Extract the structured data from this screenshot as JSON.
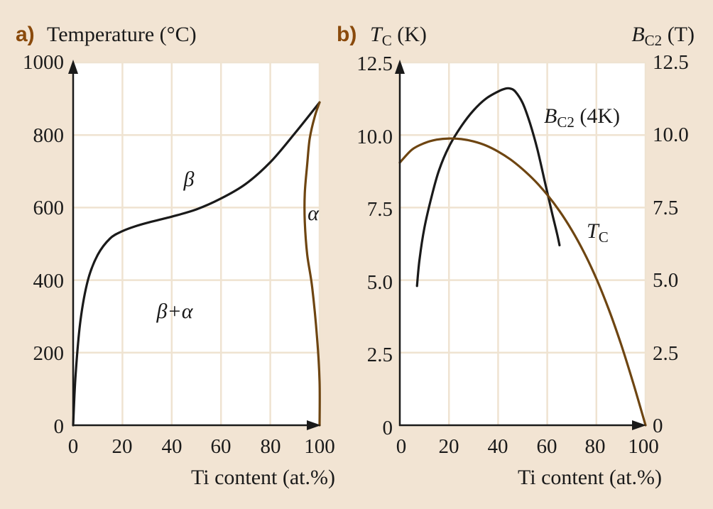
{
  "colors": {
    "background": "#f2e4d3",
    "plot_area": "#ffffff",
    "grid": "#efe3d1",
    "black_curve": "#1a1a1a",
    "brown_curve": "#6e4511",
    "panel_label": "#8a4a0c"
  },
  "chart_data": [
    {
      "type": "line",
      "panel_label": "a)",
      "title": "",
      "xlabel": "Ti content (at.%)",
      "ylabel": "Temperature (°C)",
      "xlim": [
        0,
        100
      ],
      "ylim": [
        0,
        1000
      ],
      "x_ticks": [
        "0",
        "20",
        "40",
        "60",
        "80",
        "100"
      ],
      "y_ticks": [
        "0",
        "200",
        "400",
        "600",
        "800",
        "1000"
      ],
      "grid": true,
      "series": [
        {
          "name": "",
          "color": "#1a1a1a",
          "x": [
            0,
            1,
            3,
            6,
            10,
            15,
            20,
            25,
            30,
            40,
            50,
            60,
            70,
            80,
            90,
            100
          ],
          "y": [
            0,
            140,
            290,
            400,
            470,
            515,
            535,
            548,
            558,
            575,
            595,
            625,
            665,
            725,
            805,
            890
          ]
        },
        {
          "name": "",
          "color": "#6e4511",
          "x": [
            100,
            100,
            99,
            97,
            95,
            94,
            94,
            95,
            96,
            98,
            100
          ],
          "y": [
            0,
            120,
            240,
            380,
            470,
            560,
            640,
            720,
            790,
            850,
            890
          ]
        }
      ],
      "annotations": [
        {
          "text": "β",
          "x": 47,
          "y": 650
        },
        {
          "text": "β+α",
          "x": 41,
          "y": 305
        },
        {
          "text": "α",
          "x": 97,
          "y": 575
        }
      ]
    },
    {
      "type": "line",
      "panel_label": "b)",
      "title": "",
      "xlabel": "Ti content (at.%)",
      "ylabel_left": {
        "main": "T",
        "sub": "C",
        "unit": " (K)"
      },
      "ylabel_right": {
        "main": "B",
        "sub": "C2",
        "unit": " (T)"
      },
      "xlim": [
        0,
        100
      ],
      "ylim": [
        0,
        12.5
      ],
      "ylim_right": [
        0,
        12.5
      ],
      "x_ticks": [
        "0",
        "20",
        "40",
        "60",
        "80",
        "100"
      ],
      "y_ticks_left": [
        "0",
        "2.5",
        "5.0",
        "7.5",
        "10.0",
        "12.5"
      ],
      "y_ticks_right": [
        "0",
        "2.5",
        "5.0",
        "7.5",
        "10.0",
        "12.5"
      ],
      "grid": true,
      "series": [
        {
          "name": "B_C2 (4K)",
          "label": {
            "main": "B",
            "sub": "C2",
            "unit": " (4K)"
          },
          "axis": "right",
          "color": "#1a1a1a",
          "x": [
            7,
            8,
            10,
            13,
            16,
            20,
            25,
            30,
            35,
            40,
            43,
            45,
            47,
            50,
            53,
            56,
            59,
            62,
            64,
            65
          ],
          "y": [
            4.8,
            5.7,
            6.8,
            7.9,
            8.8,
            9.6,
            10.3,
            10.85,
            11.25,
            11.5,
            11.6,
            11.6,
            11.5,
            11.1,
            10.4,
            9.5,
            8.4,
            7.3,
            6.6,
            6.2
          ]
        },
        {
          "name": "T_C",
          "label": {
            "main": "T",
            "sub": "C",
            "unit": ""
          },
          "axis": "left",
          "color": "#6e4511",
          "x": [
            0,
            5,
            10,
            15,
            20,
            25,
            30,
            35,
            40,
            45,
            50,
            55,
            60,
            65,
            70,
            75,
            80,
            85,
            90,
            95,
            100
          ],
          "y": [
            9.05,
            9.5,
            9.72,
            9.84,
            9.88,
            9.86,
            9.78,
            9.64,
            9.43,
            9.16,
            8.82,
            8.42,
            7.94,
            7.38,
            6.72,
            5.95,
            5.05,
            4.0,
            2.8,
            1.45,
            0
          ]
        }
      ]
    }
  ]
}
